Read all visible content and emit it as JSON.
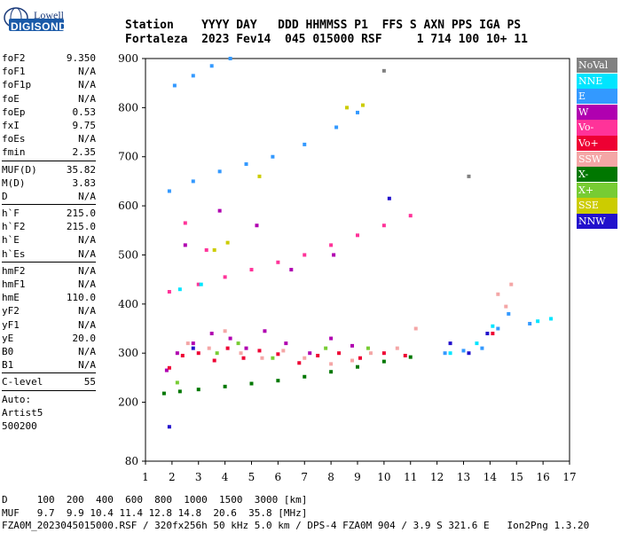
{
  "logo": {
    "line1": "Lowell",
    "line2": "DIGISONDE"
  },
  "header": {
    "line1": "Station    YYYY DAY   DDD HHMMSS P1  FFS S AXN PPS IGA PS",
    "line2": "Fortaleza  2023 Fev14  045 015000 RSF     1 714 100 10+ 11"
  },
  "params1": [
    {
      "k": "foF2",
      "v": "9.350"
    },
    {
      "k": "foF1",
      "v": "N/A"
    },
    {
      "k": "foF1p",
      "v": "N/A"
    },
    {
      "k": "foE",
      "v": "N/A"
    },
    {
      "k": "foEp",
      "v": "0.53"
    },
    {
      "k": "fxI",
      "v": "9.75"
    },
    {
      "k": "foEs",
      "v": "N/A"
    },
    {
      "k": "fmin",
      "v": "2.35"
    }
  ],
  "params2": [
    {
      "k": "MUF(D)",
      "v": "35.82"
    },
    {
      "k": "M(D)",
      "v": "3.83"
    },
    {
      "k": "D",
      "v": "N/A"
    }
  ],
  "params3": [
    {
      "k": "h`F",
      "v": "215.0"
    },
    {
      "k": "h`F2",
      "v": "215.0"
    },
    {
      "k": "h`E",
      "v": "N/A"
    },
    {
      "k": "h`Es",
      "v": "N/A"
    }
  ],
  "params4": [
    {
      "k": "hmF2",
      "v": "N/A"
    },
    {
      "k": "hmF1",
      "v": "N/A"
    },
    {
      "k": "hmE",
      "v": "110.0"
    },
    {
      "k": "yF2",
      "v": "N/A"
    },
    {
      "k": "yF1",
      "v": "N/A"
    },
    {
      "k": "yE",
      "v": "20.0"
    },
    {
      "k": "B0",
      "v": "N/A"
    },
    {
      "k": "B1",
      "v": "N/A"
    }
  ],
  "params5": [
    {
      "k": "C-level",
      "v": "55"
    }
  ],
  "auto": [
    "Auto:",
    "Artist5",
    "500200"
  ],
  "legend": [
    {
      "label": "NoVal",
      "color": "#808080"
    },
    {
      "label": "NNE",
      "color": "#00e5ff"
    },
    {
      "label": "E",
      "color": "#3399ff"
    },
    {
      "label": "W",
      "color": "#b000b0"
    },
    {
      "label": "Vo-",
      "color": "#ff3399"
    },
    {
      "label": "Vo+",
      "color": "#ee0033"
    },
    {
      "label": "SSW",
      "color": "#f4a6a6"
    },
    {
      "label": "X-",
      "color": "#007700"
    },
    {
      "label": "X+",
      "color": "#77cc33"
    },
    {
      "label": "SSE",
      "color": "#cccc00"
    },
    {
      "label": "NNW",
      "color": "#2211cc"
    }
  ],
  "footer": {
    "line1": "D     100  200  400  600  800  1000  1500  3000 [km]",
    "line2": "MUF   9.7  9.9 10.4 11.4 12.8 14.8  20.6  35.8 [MHz]",
    "line3": "FZA0M_2023045015000.RSF / 320fx256h 50 kHz 5.0 km / DPS-4 FZA0M 904 / 3.9 S 321.6 E   Ion2Png 1.3.20"
  },
  "chart_data": {
    "type": "scatter",
    "xlim": [
      1,
      17
    ],
    "ylim": [
      80,
      900
    ],
    "x_ticks": [
      1,
      2,
      3,
      4,
      5,
      6,
      7,
      8,
      9,
      10,
      11,
      12,
      13,
      14,
      15,
      16,
      17
    ],
    "y_ticks": [
      80,
      200,
      300,
      400,
      500,
      600,
      700,
      800,
      900
    ],
    "series": [
      {
        "name": "X-",
        "color": "#007700",
        "points": [
          [
            1.7,
            218
          ],
          [
            2.3,
            222
          ],
          [
            3,
            226
          ],
          [
            4,
            232
          ],
          [
            5,
            238
          ],
          [
            6,
            244
          ],
          [
            7,
            252
          ],
          [
            8,
            262
          ],
          [
            9,
            272
          ],
          [
            10,
            283
          ],
          [
            11,
            292
          ]
        ]
      },
      {
        "name": "W",
        "color": "#b000b0",
        "points": [
          [
            1.8,
            265
          ],
          [
            2.2,
            300
          ],
          [
            2.8,
            320
          ],
          [
            3.5,
            340
          ],
          [
            4.2,
            330
          ],
          [
            4.8,
            310
          ],
          [
            5.5,
            345
          ],
          [
            6.3,
            320
          ],
          [
            7.2,
            300
          ],
          [
            8,
            330
          ],
          [
            8.8,
            315
          ],
          [
            2.5,
            520
          ],
          [
            3.8,
            590
          ],
          [
            5.2,
            560
          ],
          [
            6.5,
            470
          ],
          [
            8.1,
            500
          ]
        ]
      },
      {
        "name": "Vo+",
        "color": "#ee0033",
        "points": [
          [
            1.9,
            270
          ],
          [
            2.4,
            295
          ],
          [
            3,
            300
          ],
          [
            3.6,
            285
          ],
          [
            4.1,
            310
          ],
          [
            4.7,
            290
          ],
          [
            5.3,
            305
          ],
          [
            6,
            298
          ],
          [
            6.8,
            280
          ],
          [
            7.5,
            295
          ],
          [
            8.3,
            300
          ],
          [
            9.1,
            290
          ],
          [
            10,
            300
          ],
          [
            10.8,
            295
          ],
          [
            14.1,
            340
          ]
        ]
      },
      {
        "name": "SSW",
        "color": "#f4a6a6",
        "points": [
          [
            2.6,
            320
          ],
          [
            3.4,
            310
          ],
          [
            4,
            345
          ],
          [
            4.6,
            300
          ],
          [
            5.4,
            290
          ],
          [
            6.2,
            305
          ],
          [
            7,
            290
          ],
          [
            8,
            278
          ],
          [
            8.8,
            285
          ],
          [
            9.5,
            300
          ],
          [
            10.5,
            310
          ],
          [
            11.2,
            350
          ],
          [
            14.3,
            420
          ],
          [
            14.8,
            440
          ],
          [
            14.6,
            395
          ]
        ]
      },
      {
        "name": "Vo-",
        "color": "#ff3399",
        "points": [
          [
            1.9,
            425
          ],
          [
            3,
            440
          ],
          [
            4,
            455
          ],
          [
            5,
            470
          ],
          [
            6,
            485
          ],
          [
            7,
            500
          ],
          [
            8,
            520
          ],
          [
            9,
            540
          ],
          [
            10,
            560
          ],
          [
            11,
            580
          ],
          [
            2.5,
            565
          ],
          [
            3.3,
            510
          ]
        ]
      },
      {
        "name": "E",
        "color": "#3399ff",
        "points": [
          [
            2.1,
            845
          ],
          [
            2.8,
            865
          ],
          [
            3.5,
            885
          ],
          [
            4.2,
            900
          ],
          [
            1.9,
            630
          ],
          [
            2.8,
            650
          ],
          [
            3.8,
            670
          ],
          [
            4.8,
            685
          ],
          [
            5.8,
            700
          ],
          [
            7,
            725
          ],
          [
            8.2,
            760
          ],
          [
            9,
            790
          ],
          [
            12.3,
            300
          ],
          [
            13,
            305
          ],
          [
            13.7,
            310
          ],
          [
            14.3,
            350
          ],
          [
            14.7,
            380
          ],
          [
            15.5,
            360
          ]
        ]
      },
      {
        "name": "NNE",
        "color": "#00e5ff",
        "points": [
          [
            2.3,
            430
          ],
          [
            3.1,
            440
          ],
          [
            12.5,
            300
          ],
          [
            13.5,
            320
          ],
          [
            14.1,
            355
          ],
          [
            15.8,
            365
          ],
          [
            16.3,
            370
          ]
        ]
      },
      {
        "name": "X+",
        "color": "#77cc33",
        "points": [
          [
            2.2,
            240
          ],
          [
            3.7,
            300
          ],
          [
            4.5,
            320
          ],
          [
            5.8,
            290
          ],
          [
            7.8,
            310
          ],
          [
            9.4,
            310
          ]
        ]
      },
      {
        "name": "SSE",
        "color": "#cccc00",
        "points": [
          [
            3.6,
            510
          ],
          [
            4.1,
            525
          ],
          [
            5.3,
            660
          ],
          [
            8.6,
            800
          ],
          [
            9.2,
            805
          ]
        ]
      },
      {
        "name": "NNW",
        "color": "#2211cc",
        "points": [
          [
            1.9,
            150
          ],
          [
            12.5,
            320
          ],
          [
            13.2,
            300
          ],
          [
            13.9,
            340
          ],
          [
            10.2,
            615
          ],
          [
            2.8,
            310
          ]
        ]
      },
      {
        "name": "NoVal",
        "color": "#808080",
        "points": [
          [
            10,
            875
          ],
          [
            13.2,
            660
          ]
        ]
      }
    ]
  }
}
